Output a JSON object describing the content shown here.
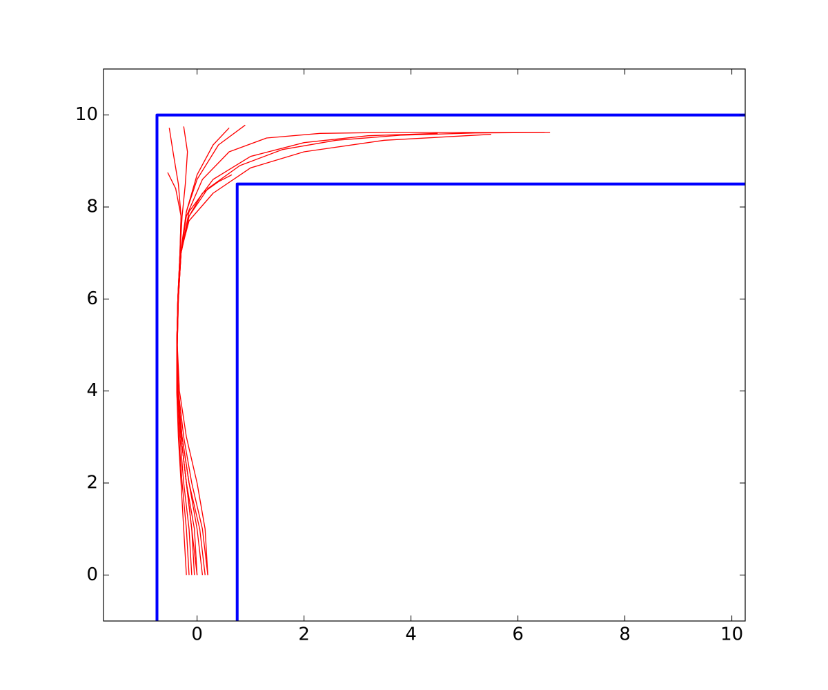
{
  "chart_data": {
    "type": "line",
    "xlim": [
      -1.75,
      10.25
    ],
    "ylim": [
      -1,
      11
    ],
    "xticks": [
      0,
      2,
      4,
      6,
      8,
      10
    ],
    "yticks": [
      0,
      2,
      4,
      6,
      8,
      10
    ],
    "grid": false,
    "series": [
      {
        "color": "#0000ff",
        "linewidth": 3,
        "x": [
          -0.75,
          -0.75,
          10.25
        ],
        "values": [
          -1,
          10,
          10
        ]
      },
      {
        "color": "#0000ff",
        "linewidth": 3,
        "x": [
          0.75,
          0.75,
          10.25
        ],
        "values": [
          -1,
          8.5,
          8.5
        ]
      },
      {
        "color": "#ff0000",
        "linewidth": 1,
        "x": [
          0.2,
          0.1,
          -0.1,
          -0.25,
          -0.35,
          -0.37,
          -0.35,
          -0.3,
          -0.15,
          0.2,
          0.8,
          1.6,
          2.6,
          3.8,
          5.2,
          6.6
        ],
        "values": [
          0,
          1,
          2,
          3,
          4,
          5,
          6,
          7,
          7.8,
          8.4,
          8.9,
          9.25,
          9.45,
          9.56,
          9.61,
          9.62
        ]
      },
      {
        "color": "#ff0000",
        "linewidth": 1,
        "x": [
          0.0,
          -0.05,
          -0.2,
          -0.3,
          -0.37,
          -0.38,
          -0.36,
          -0.3,
          -0.2,
          0.1,
          0.6,
          1.3,
          2.3,
          3.5,
          5.0,
          6.5
        ],
        "values": [
          0,
          1,
          2,
          3,
          4,
          5,
          6,
          7,
          7.8,
          8.6,
          9.2,
          9.5,
          9.6,
          9.62,
          9.62,
          9.62
        ]
      },
      {
        "color": "#ff0000",
        "linewidth": 1,
        "x": [
          -0.2,
          -0.25,
          -0.3,
          -0.35,
          -0.38,
          -0.38,
          -0.36,
          -0.3,
          -0.15,
          0.3,
          1.0,
          2.0,
          3.2,
          4.5
        ],
        "values": [
          0,
          1,
          2,
          3,
          4,
          5,
          6,
          7,
          7.9,
          8.6,
          9.1,
          9.4,
          9.55,
          9.6
        ]
      },
      {
        "color": "#ff0000",
        "linewidth": 1,
        "x": [
          0.1,
          0.0,
          -0.15,
          -0.28,
          -0.36,
          -0.37,
          -0.35,
          -0.3,
          -0.15,
          0.1,
          0.4,
          0.65
        ],
        "values": [
          0,
          1,
          2,
          3,
          4,
          5,
          6,
          7,
          7.8,
          8.3,
          8.55,
          8.7
        ]
      },
      {
        "color": "#ff0000",
        "linewidth": 1,
        "x": [
          -0.1,
          -0.15,
          -0.25,
          -0.32,
          -0.37,
          -0.38,
          -0.36,
          -0.32,
          -0.3,
          -0.35,
          -0.45,
          -0.52
        ],
        "values": [
          0,
          1,
          2,
          3,
          4,
          5,
          6,
          7,
          7.8,
          8.5,
          9.2,
          9.72
        ]
      },
      {
        "color": "#ff0000",
        "linewidth": 1,
        "x": [
          0.0,
          -0.1,
          -0.2,
          -0.3,
          -0.37,
          -0.38,
          -0.36,
          -0.32,
          -0.3,
          -0.4,
          -0.55
        ],
        "values": [
          0,
          1,
          2,
          3,
          4,
          5,
          6,
          7,
          7.8,
          8.4,
          8.75
        ]
      },
      {
        "color": "#ff0000",
        "linewidth": 1,
        "x": [
          0.15,
          0.05,
          -0.15,
          -0.28,
          -0.36,
          -0.37,
          -0.35,
          -0.3,
          -0.2,
          0.0,
          0.4,
          0.9
        ],
        "values": [
          0,
          1,
          2,
          3,
          4,
          5,
          6,
          7,
          7.9,
          8.6,
          9.35,
          9.78
        ]
      },
      {
        "color": "#ff0000",
        "linewidth": 1,
        "x": [
          -0.15,
          -0.2,
          -0.28,
          -0.34,
          -0.38,
          -0.38,
          -0.36,
          -0.32,
          -0.28,
          -0.22,
          -0.18,
          -0.25
        ],
        "values": [
          0,
          1,
          2,
          3,
          4,
          5,
          6,
          7,
          7.8,
          8.5,
          9.2,
          9.75
        ]
      },
      {
        "color": "#ff0000",
        "linewidth": 1,
        "x": [
          0.2,
          0.15,
          0.0,
          -0.2,
          -0.33,
          -0.37,
          -0.36,
          -0.31,
          -0.15,
          0.3,
          1.0,
          2.0,
          3.5,
          5.5
        ],
        "values": [
          0,
          1,
          2,
          3,
          4,
          5,
          6,
          7,
          7.7,
          8.3,
          8.85,
          9.2,
          9.45,
          9.58
        ]
      },
      {
        "color": "#ff0000",
        "linewidth": 1,
        "x": [
          -0.05,
          -0.1,
          -0.2,
          -0.3,
          -0.37,
          -0.38,
          -0.36,
          -0.31,
          -0.2,
          0.0,
          0.3,
          0.6
        ],
        "values": [
          0,
          1,
          2,
          3,
          4,
          5,
          6,
          7,
          7.9,
          8.7,
          9.35,
          9.72
        ]
      }
    ]
  }
}
